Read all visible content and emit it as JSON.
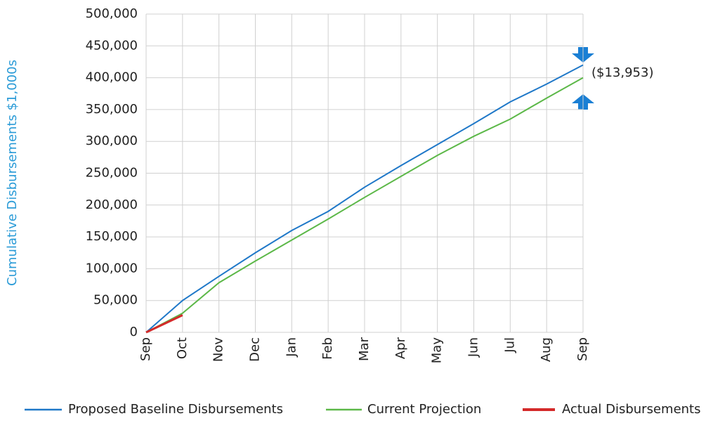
{
  "chart_data": {
    "type": "line",
    "y_label": "Cumulative Disbursements $1,000s",
    "categories": [
      "Sep",
      "Oct",
      "Nov",
      "Dec",
      "Jan",
      "Feb",
      "Mar",
      "Apr",
      "May",
      "Jun",
      "Jul",
      "Aug",
      "Sep"
    ],
    "series": [
      {
        "name": "Proposed Baseline Disbursements",
        "color": "#1f78c8",
        "values": [
          0,
          50000,
          88000,
          125000,
          160000,
          190000,
          228000,
          262000,
          295000,
          328000,
          362000,
          390000,
          420000
        ]
      },
      {
        "name": "Current Projection",
        "color": "#5cb848",
        "values": [
          0,
          30000,
          78000,
          112000,
          145000,
          178000,
          212000,
          245000,
          278000,
          308000,
          335000,
          368000,
          400000
        ]
      },
      {
        "name": "Actual Disbursements",
        "color": "#d42a2a",
        "values": [
          0,
          27000,
          null,
          null,
          null,
          null,
          null,
          null,
          null,
          null,
          null,
          null,
          null
        ]
      }
    ],
    "ylim": [
      0,
      500000
    ],
    "yticks": [
      0,
      {
        "value": 50000,
        "label": "50,000"
      },
      {
        "value": 100000,
        "label": "100,000"
      },
      {
        "value": 150000,
        "label": "150,000"
      },
      {
        "value": 200000,
        "label": "200,000"
      },
      {
        "value": 250000,
        "label": "250,000"
      },
      {
        "value": 300000,
        "label": "300,000"
      },
      {
        "value": 350000,
        "label": "350,000"
      },
      {
        "value": 400000,
        "label": "400,000"
      },
      {
        "value": 450000,
        "label": "450,000"
      },
      {
        "value": 500000,
        "label": "500,000"
      }
    ],
    "grid": true,
    "annotation": "($13,953)"
  }
}
